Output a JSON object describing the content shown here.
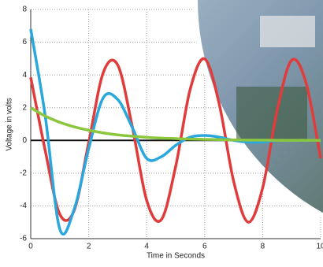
{
  "chart_data": {
    "type": "line",
    "x_label": "Time in Seconds",
    "y_label": "Voltage in volts",
    "x": [
      0,
      0.5,
      1,
      1.5,
      2,
      2.5,
      3,
      3.5,
      4,
      4.5,
      5,
      5.5,
      6,
      6.5,
      7,
      7.5,
      8,
      8.5,
      9,
      9.5,
      10
    ],
    "series": [
      {
        "color": "#e03c3c",
        "values": [
          3.85,
          -0.62,
          -4.5,
          -4.27,
          -0.13,
          4.13,
          4.61,
          0.87,
          -3.66,
          -4.85,
          -1.59,
          3.12,
          4.98,
          2.24,
          -2.5,
          -4.99,
          -2.9,
          1.83,
          4.9,
          3.5,
          -1.1
        ]
      },
      {
        "color": "#2aa7dc",
        "values": [
          6.8,
          1.5,
          -5.4,
          -4.2,
          -0.5,
          2.6,
          2.5,
          0.8,
          -1.1,
          -1.0,
          -0.3,
          0.2,
          0.3,
          0.2,
          0,
          -0.1,
          -0.1,
          0,
          0,
          0,
          0
        ]
      },
      {
        "color": "#8cc63f",
        "values": [
          2.0,
          1.49,
          1.11,
          0.83,
          0.62,
          0.46,
          0.34,
          0.26,
          0.19,
          0.14,
          0.11,
          0.08,
          0.06,
          0.05,
          0.03,
          0.02,
          0.02,
          0.01,
          0.01,
          0.01,
          0
        ]
      }
    ],
    "xlim": [
      0,
      10
    ],
    "ylim": [
      -6,
      8
    ],
    "xticks": [
      0,
      2,
      4,
      6,
      8,
      10
    ],
    "yticks": [
      -6,
      -4,
      -2,
      0,
      2,
      4,
      6,
      8
    ],
    "grid": true
  }
}
